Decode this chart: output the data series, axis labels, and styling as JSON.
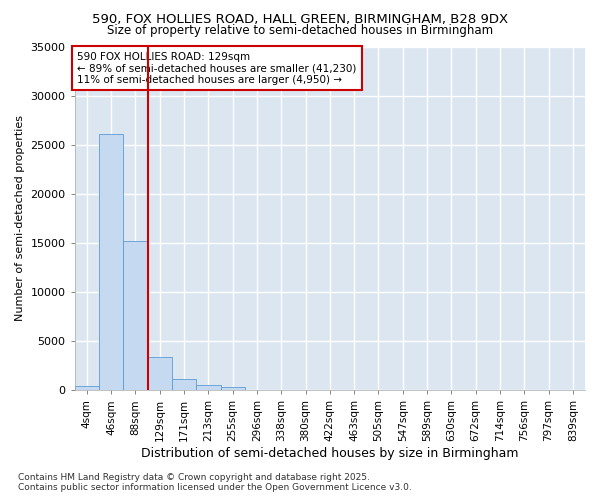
{
  "title_line1": "590, FOX HOLLIES ROAD, HALL GREEN, BIRMINGHAM, B28 9DX",
  "title_line2": "Size of property relative to semi-detached houses in Birmingham",
  "xlabel": "Distribution of semi-detached houses by size in Birmingham",
  "ylabel": "Number of semi-detached properties",
  "footnote": "Contains HM Land Registry data © Crown copyright and database right 2025.\nContains public sector information licensed under the Open Government Licence v3.0.",
  "categories": [
    "4sqm",
    "46sqm",
    "88sqm",
    "129sqm",
    "171sqm",
    "213sqm",
    "255sqm",
    "296sqm",
    "338sqm",
    "380sqm",
    "422sqm",
    "463sqm",
    "505sqm",
    "547sqm",
    "589sqm",
    "630sqm",
    "672sqm",
    "714sqm",
    "756sqm",
    "797sqm",
    "839sqm"
  ],
  "values": [
    400,
    26100,
    15200,
    3350,
    1150,
    500,
    350,
    0,
    0,
    0,
    0,
    0,
    0,
    0,
    0,
    0,
    0,
    0,
    0,
    0,
    0
  ],
  "bar_color": "#c5d9f1",
  "bar_edge_color": "#5b9bd5",
  "figure_bg": "#ffffff",
  "axes_bg": "#dce6f1",
  "grid_color": "#ffffff",
  "vline_color": "#cc0000",
  "annotation_text": "590 FOX HOLLIES ROAD: 129sqm\n← 89% of semi-detached houses are smaller (41,230)\n11% of semi-detached houses are larger (4,950) →",
  "annotation_box_color": "white",
  "annotation_box_edge": "#cc0000",
  "ylim": [
    0,
    35000
  ],
  "yticks": [
    0,
    5000,
    10000,
    15000,
    20000,
    25000,
    30000,
    35000
  ],
  "vline_bin": 3
}
